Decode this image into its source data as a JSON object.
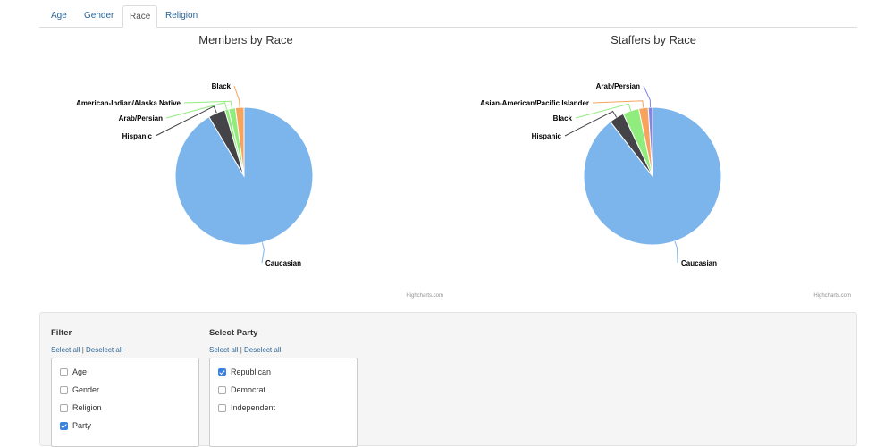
{
  "tabs": [
    {
      "label": "Age"
    },
    {
      "label": "Gender"
    },
    {
      "label": "Race",
      "active": true
    },
    {
      "label": "Religion"
    }
  ],
  "charts": {
    "credits": "Highcharts.com"
  },
  "chart_data": [
    {
      "type": "pie",
      "title": "Members by Race",
      "slices": [
        {
          "name": "Caucasian",
          "value": 91.5,
          "color": "#7cb5ec"
        },
        {
          "name": "Hispanic",
          "value": 4.0,
          "color": "#434348"
        },
        {
          "name": "Arab/Persian",
          "value": 0.9,
          "color": "#90ed7d"
        },
        {
          "name": "American-Indian/Alaska Native",
          "value": 1.6,
          "color": "#90ed7d"
        },
        {
          "name": "Black",
          "value": 2.0,
          "color": "#f7a35c"
        }
      ]
    },
    {
      "type": "pie",
      "title": "Staffers by Race",
      "slices": [
        {
          "name": "Caucasian",
          "value": 89.5,
          "color": "#7cb5ec"
        },
        {
          "name": "Hispanic",
          "value": 3.5,
          "color": "#434348"
        },
        {
          "name": "Black",
          "value": 3.8,
          "color": "#90ed7d"
        },
        {
          "name": "Asian-American/Pacific Islander",
          "value": 2.2,
          "color": "#f7a35c"
        },
        {
          "name": "Arab/Persian",
          "value": 1.0,
          "color": "#8085e9"
        }
      ]
    }
  ],
  "filter": {
    "title": "Filter",
    "select_all": "Select all",
    "separator": "|",
    "deselect_all": "Deselect all",
    "options": [
      {
        "label": "Age",
        "checked": false
      },
      {
        "label": "Gender",
        "checked": false
      },
      {
        "label": "Religion",
        "checked": false
      },
      {
        "label": "Party",
        "checked": true
      }
    ]
  },
  "party": {
    "title": "Select Party",
    "select_all": "Select all",
    "separator": "|",
    "deselect_all": "Deselect all",
    "options": [
      {
        "label": "Republican",
        "checked": true
      },
      {
        "label": "Democrat",
        "checked": false
      },
      {
        "label": "Independent",
        "checked": false
      }
    ]
  }
}
